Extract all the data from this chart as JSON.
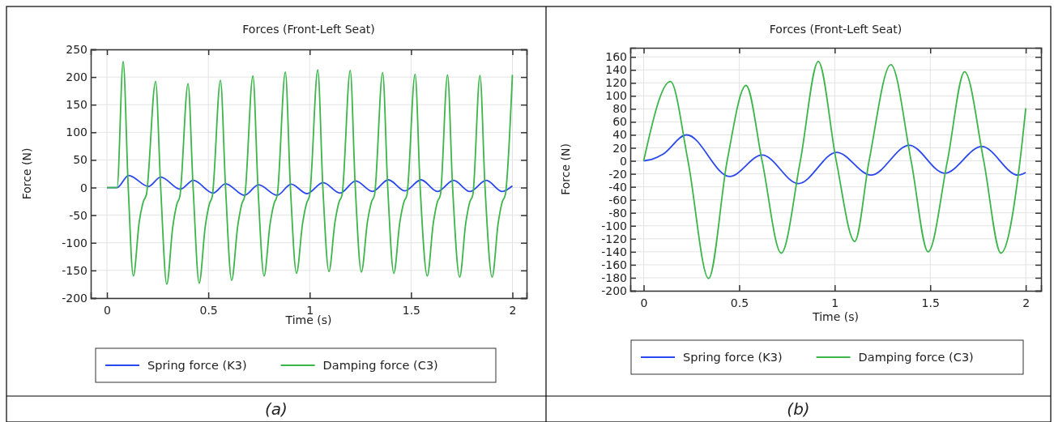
{
  "chart_data": [
    {
      "type": "line",
      "title": "Forces (Front-Left Seat)",
      "xlabel": "Time (s)",
      "ylabel": "Force (N)",
      "xlim": [
        -0.08,
        2.07
      ],
      "ylim": [
        -200,
        250
      ],
      "xticks": [
        0,
        0.5,
        1,
        1.5,
        2
      ],
      "yticks": [
        -200,
        -150,
        -100,
        -50,
        0,
        50,
        100,
        150,
        200,
        250
      ],
      "grid": true,
      "legend": "bottom",
      "annotations": [
        "(a)"
      ],
      "series": [
        {
          "name": "Spring force (K3)",
          "color": "#2a48f0",
          "x": [
            0,
            0.05,
            0.107,
            0.205,
            0.265,
            0.362,
            0.426,
            0.524,
            0.585,
            0.678,
            0.748,
            0.839,
            0.909,
            0.987,
            1.066,
            1.15,
            1.227,
            1.31,
            1.388,
            1.47,
            1.549,
            1.63,
            1.71,
            1.79,
            1.871,
            1.95,
            2.0
          ],
          "values": [
            0,
            0,
            22,
            2,
            19,
            -3,
            13,
            -10,
            7,
            -14,
            5,
            -14,
            6,
            -11,
            9,
            -10,
            12,
            -7,
            14,
            -6,
            14,
            -7,
            13,
            -7,
            13,
            -7,
            3
          ]
        },
        {
          "name": "Damping force (C3)",
          "color": "#3cb54a",
          "x": [
            0,
            0.05,
            0.08,
            0.105,
            0.13,
            0.16,
            0.18,
            0.195,
            0.24,
            0.265,
            0.295,
            0.325,
            0.345,
            0.36,
            0.4,
            0.425,
            0.455,
            0.485,
            0.505,
            0.52,
            0.56,
            0.585,
            0.615,
            0.645,
            0.665,
            0.68,
            0.72,
            0.745,
            0.775,
            0.805,
            0.825,
            0.84,
            0.88,
            0.905,
            0.935,
            0.965,
            0.985,
            1.0,
            1.04,
            1.065,
            1.095,
            1.125,
            1.145,
            1.16,
            1.2,
            1.225,
            1.255,
            1.285,
            1.305,
            1.32,
            1.36,
            1.385,
            1.415,
            1.445,
            1.465,
            1.48,
            1.52,
            1.545,
            1.58,
            1.61,
            1.63,
            1.645,
            1.68,
            1.705,
            1.74,
            1.77,
            1.79,
            1.805,
            1.84,
            1.865,
            1.9,
            1.93,
            1.95,
            1.965,
            2.0
          ],
          "values": [
            0,
            0,
            228,
            0,
            -160,
            -60,
            -25,
            -12,
            192,
            0,
            -175,
            -70,
            -30,
            -15,
            188,
            0,
            -173,
            -70,
            -30,
            -15,
            194,
            0,
            -168,
            -70,
            -30,
            -15,
            202,
            0,
            -160,
            -65,
            -28,
            -14,
            209,
            0,
            -155,
            -65,
            -28,
            -14,
            213,
            0,
            -152,
            -62,
            -26,
            -13,
            212,
            0,
            -153,
            -62,
            -26,
            -13,
            208,
            0,
            -155,
            -62,
            -26,
            -13,
            205,
            0,
            -160,
            -64,
            -26,
            -13,
            204,
            0,
            -162,
            -64,
            -26,
            -13,
            203,
            0,
            -162,
            -64,
            -26,
            -13,
            204
          ]
        }
      ]
    },
    {
      "type": "line",
      "title": "Forces (Front-Left Seat)",
      "xlabel": "Time (s)",
      "ylabel": "Force (N)",
      "xlim": [
        -0.07,
        2.08
      ],
      "ylim": [
        -200,
        174
      ],
      "xticks": [
        0,
        0.5,
        1,
        1.5,
        2
      ],
      "yticks": [
        -200,
        -180,
        -160,
        -140,
        -120,
        -100,
        -80,
        -60,
        -40,
        -20,
        0,
        20,
        40,
        60,
        80,
        100,
        120,
        140,
        160
      ],
      "grid": true,
      "legend": "bottom",
      "annotations": [
        "(b)"
      ],
      "series": [
        {
          "name": "Spring force (K3)",
          "color": "#2a48f0",
          "x": [
            0,
            0.05,
            0.1,
            0.225,
            0.45,
            0.62,
            0.81,
            1.01,
            1.19,
            1.39,
            1.575,
            1.77,
            1.96,
            2.0
          ],
          "values": [
            0,
            3,
            10,
            40,
            -24,
            9,
            -35,
            13,
            -22,
            24,
            -19,
            22,
            -22,
            -18
          ]
        },
        {
          "name": "Damping force (C3)",
          "color": "#3cb54a",
          "x": [
            0,
            0.14,
            0.232,
            0.34,
            0.437,
            0.536,
            0.62,
            0.72,
            0.82,
            0.914,
            1.008,
            1.105,
            1.18,
            1.294,
            1.4,
            1.489,
            1.59,
            1.68,
            1.78,
            1.87,
            1.97,
            2.0
          ],
          "values": [
            0,
            122,
            0,
            -181,
            0,
            116,
            0,
            -142,
            0,
            153,
            0,
            -124,
            0,
            148,
            0,
            -140,
            0,
            137,
            0,
            -142,
            0,
            81
          ]
        }
      ]
    }
  ]
}
